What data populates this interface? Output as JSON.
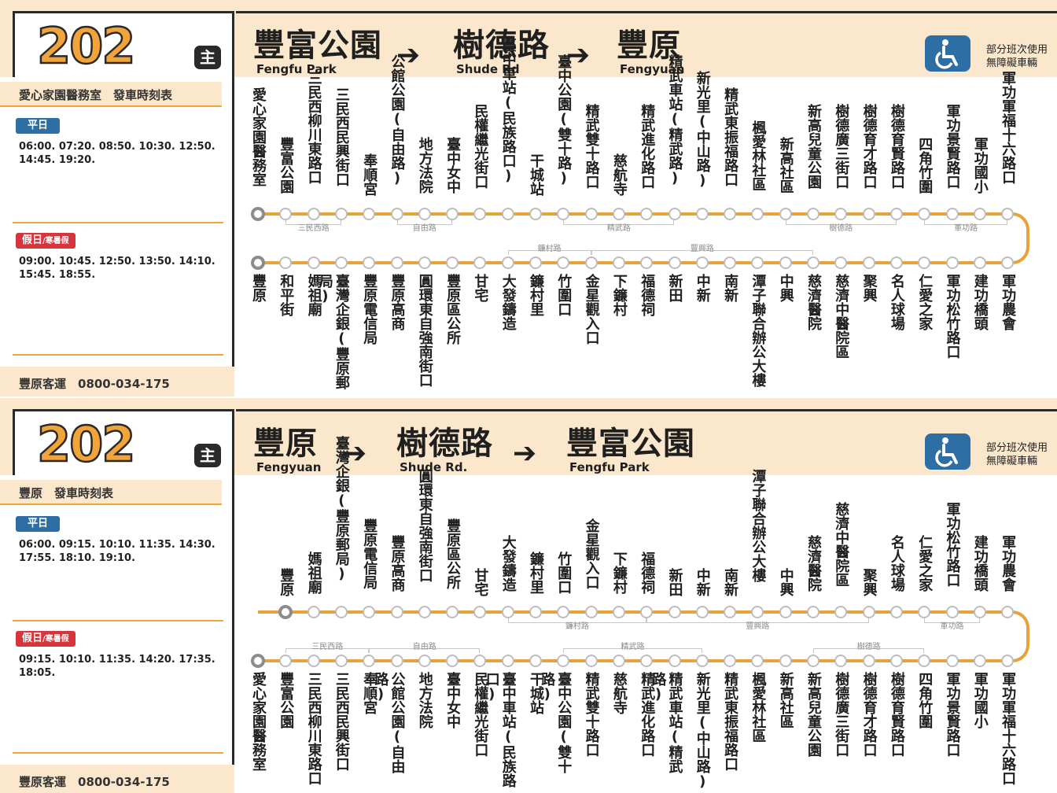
{
  "colors": {
    "accent": "#f0a43a",
    "header_bg": "#fbe7cc",
    "weekday_badge": "#2d6fa5",
    "holiday_badge": "#d8343b",
    "route_line": "#e9a23b",
    "access_icon_bg": "#2d6fa5"
  },
  "route_number": "202",
  "main_badge": "主",
  "accessibility": {
    "icon": "wheelchair-icon",
    "line1": "部分班次使用",
    "line2": "無障礙車輛"
  },
  "company_phone": "豐原客運　0800-034-175",
  "weekday_label": "平日",
  "holiday_label": "假日",
  "holiday_sub": "/寒暑假",
  "panels": [
    {
      "directions": [
        {
          "zh": "豐富公園",
          "en": "Fengfu Park"
        },
        {
          "zh": "樹德路",
          "en": "Shude Rd"
        },
        {
          "zh": "豐原",
          "en": "Fengyuan"
        }
      ],
      "arrow": "➔",
      "schedule_title": "愛心家園醫務室　發車時刻表",
      "weekday_times": [
        "06:00. 07:20. 08:50. 10:30. 12:50.",
        "14:45. 19:20."
      ],
      "holiday_times": [
        "09:00. 10:45. 12:50. 13:50. 14:10.",
        "15:45. 18:55."
      ],
      "upper_stops": [
        "愛心家園醫務室",
        "豐富公園",
        "三民西柳川東路口",
        "三民西民興街口",
        "奉順宮",
        "公館公園(自由路)",
        "地方法院",
        "臺中女中",
        "民權繼光街口",
        "臺中車站(民族路口)",
        "干城站",
        "臺中公園(雙十路)",
        "精武雙十路口",
        "慈航寺",
        "精武進化路口",
        "精武車站(精武路)",
        "新光里(中山路)",
        "精武東振福路口",
        "楓愛林社區",
        "新高社區",
        "新高兒童公園",
        "樹德廣三街口",
        "樹德育才路口",
        "樹德育賢路口",
        "四角竹圍",
        "軍功景賢路口",
        "軍功國小",
        "軍功軍福十六路口"
      ],
      "lower_stops": [
        "豐原",
        "和平街",
        "媽祖廟",
        "臺灣企銀(豐原郵局)",
        "豐原電信局",
        "豐原高商",
        "圓環東自強南街口",
        "豐原區公所",
        "甘宅",
        "大發鑄造",
        "鐮村里",
        "竹圍口",
        "金星觀入口",
        "下鐮村",
        "福德祠",
        "新田",
        "中新",
        "南新",
        "潭子聯合辦公大樓",
        "中興",
        "慈濟醫院",
        "慈濟中醫院區",
        "聚興",
        "名人球場",
        "仁愛之家",
        "軍功松竹路口",
        "建功橋頭",
        "軍功農會"
      ],
      "upper_roads": [
        "三民西路",
        "自由路",
        "精武路",
        "樹德路",
        "軍功路"
      ],
      "lower_roads": [
        "鐮村路",
        "豐興路"
      ]
    },
    {
      "directions": [
        {
          "zh": "豐原",
          "en": "Fengyuan"
        },
        {
          "zh": "樹德路",
          "en": "Shude Rd."
        },
        {
          "zh": "豐富公園",
          "en": "Fengfu Park"
        }
      ],
      "arrow": "➔",
      "schedule_title": "豐原　發車時刻表",
      "weekday_times": [
        "06:00. 09:15. 10:10. 11:35. 14:30.",
        "17:55. 18:10. 19:10."
      ],
      "holiday_times": [
        "09:15. 10:10. 11:35. 14:20. 17:35.",
        "18:05."
      ],
      "upper_stops": [
        "豐原",
        "媽祖廟",
        "臺灣企銀(豐原郵局)",
        "豐原電信局",
        "豐原高商",
        "圓環東自強南街口",
        "豐原區公所",
        "甘宅",
        "大發鑄造",
        "鐮村里",
        "竹圍口",
        "金星觀入口",
        "下鐮村",
        "福德祠",
        "新田",
        "中新",
        "南新",
        "潭子聯合辦公大樓",
        "中興",
        "慈濟醫院",
        "慈濟中醫院區",
        "聚興",
        "名人球場",
        "仁愛之家",
        "軍功松竹路口",
        "建功橋頭",
        "軍功農會"
      ],
      "lower_stops": [
        "愛心家園醫務室",
        "豐富公園",
        "三民西柳川東路口",
        "三民西民興街口",
        "奉順宮",
        "公館公園(自由路)",
        "地方法院",
        "臺中女中",
        "民權繼光街口",
        "臺中車站(民族路口)",
        "干城站",
        "臺中公園(雙十路)",
        "精武雙十路口",
        "慈航寺",
        "精武進化路口",
        "精武車站(精武路)",
        "新光里(中山路)",
        "精武東振福路口",
        "楓愛林社區",
        "新高社區",
        "新高兒童公園",
        "樹德廣三街口",
        "樹德育才路口",
        "樹德育賢路口",
        "四角竹圍",
        "軍功景賢路口",
        "軍功國小",
        "軍功軍福十六路口"
      ],
      "upper_roads": [
        "鐮村路",
        "豐興路",
        "軍功路"
      ],
      "lower_roads": [
        "三民西路",
        "自由路",
        "精武路",
        "樹德路"
      ]
    }
  ]
}
